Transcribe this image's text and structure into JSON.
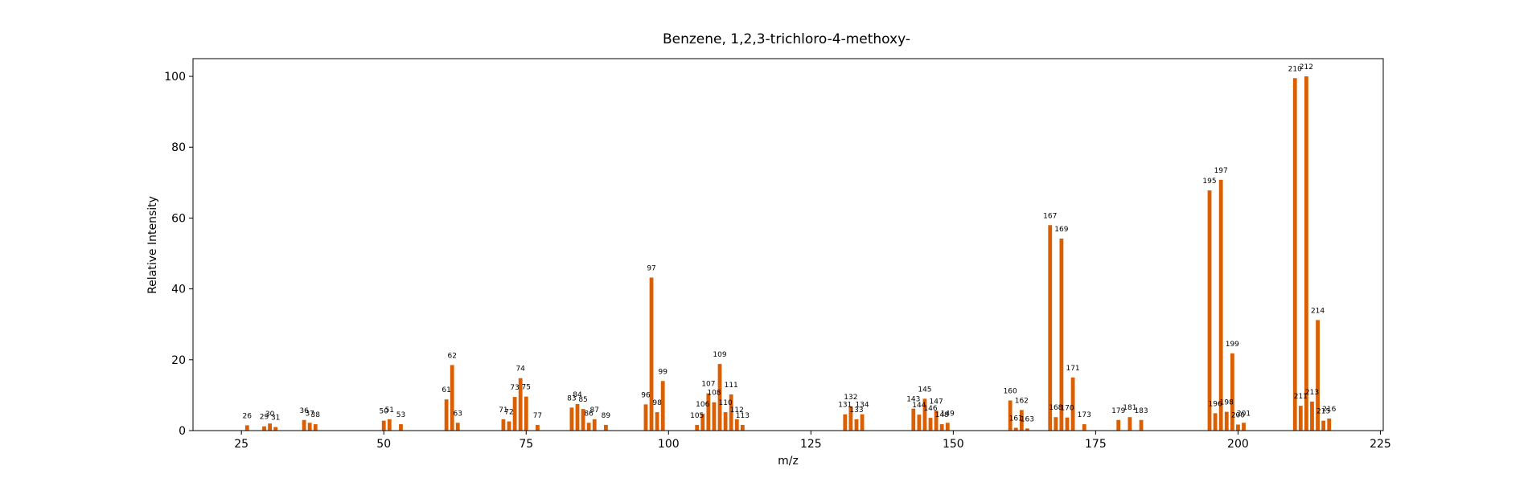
{
  "chart_data": {
    "type": "bar",
    "title": "Benzene, 1,2,3-trichloro-4-methoxy-",
    "xlabel": "m/z",
    "ylabel": "Relative Intensity",
    "xlim": [
      16.5,
      225.5
    ],
    "ylim": [
      0,
      105
    ],
    "xticks": [
      25,
      50,
      75,
      100,
      125,
      150,
      175,
      200,
      225
    ],
    "yticks": [
      0,
      20,
      40,
      60,
      80,
      100
    ],
    "grid": false,
    "bar_color": "#d95f02",
    "x": [
      26,
      29,
      30,
      31,
      36,
      37,
      38,
      50,
      51,
      53,
      61,
      62,
      63,
      71,
      72,
      73,
      74,
      75,
      77,
      83,
      84,
      85,
      86,
      87,
      89,
      96,
      97,
      98,
      99,
      105,
      106,
      107,
      108,
      109,
      110,
      111,
      112,
      113,
      131,
      132,
      133,
      134,
      143,
      144,
      145,
      146,
      147,
      148,
      149,
      160,
      161,
      162,
      163,
      167,
      168,
      169,
      170,
      171,
      173,
      179,
      181,
      183,
      195,
      196,
      197,
      198,
      199,
      200,
      201,
      210,
      211,
      212,
      213,
      214,
      215,
      216
    ],
    "values": [
      1.5,
      1.2,
      2.0,
      1.0,
      3.0,
      2.2,
      1.8,
      2.8,
      3.2,
      1.8,
      8.8,
      18.5,
      2.2,
      3.2,
      2.6,
      9.5,
      14.8,
      9.6,
      1.6,
      6.5,
      7.5,
      6.1,
      2.2,
      3.2,
      1.6,
      7.4,
      43.2,
      5.2,
      14.0,
      1.6,
      4.8,
      10.5,
      8.0,
      18.8,
      5.2,
      10.2,
      3.2,
      1.6,
      4.6,
      6.8,
      3.2,
      4.6,
      6.2,
      4.5,
      9.0,
      3.6,
      5.6,
      1.8,
      2.2,
      8.5,
      0.8,
      5.8,
      0.6,
      58.0,
      3.8,
      54.2,
      3.7,
      15.0,
      1.8,
      3.0,
      3.8,
      3.0,
      67.8,
      4.9,
      70.8,
      5.3,
      21.8,
      1.7,
      2.2,
      99.5,
      7.0,
      100.0,
      8.2,
      31.2,
      2.8,
      3.4
    ]
  }
}
